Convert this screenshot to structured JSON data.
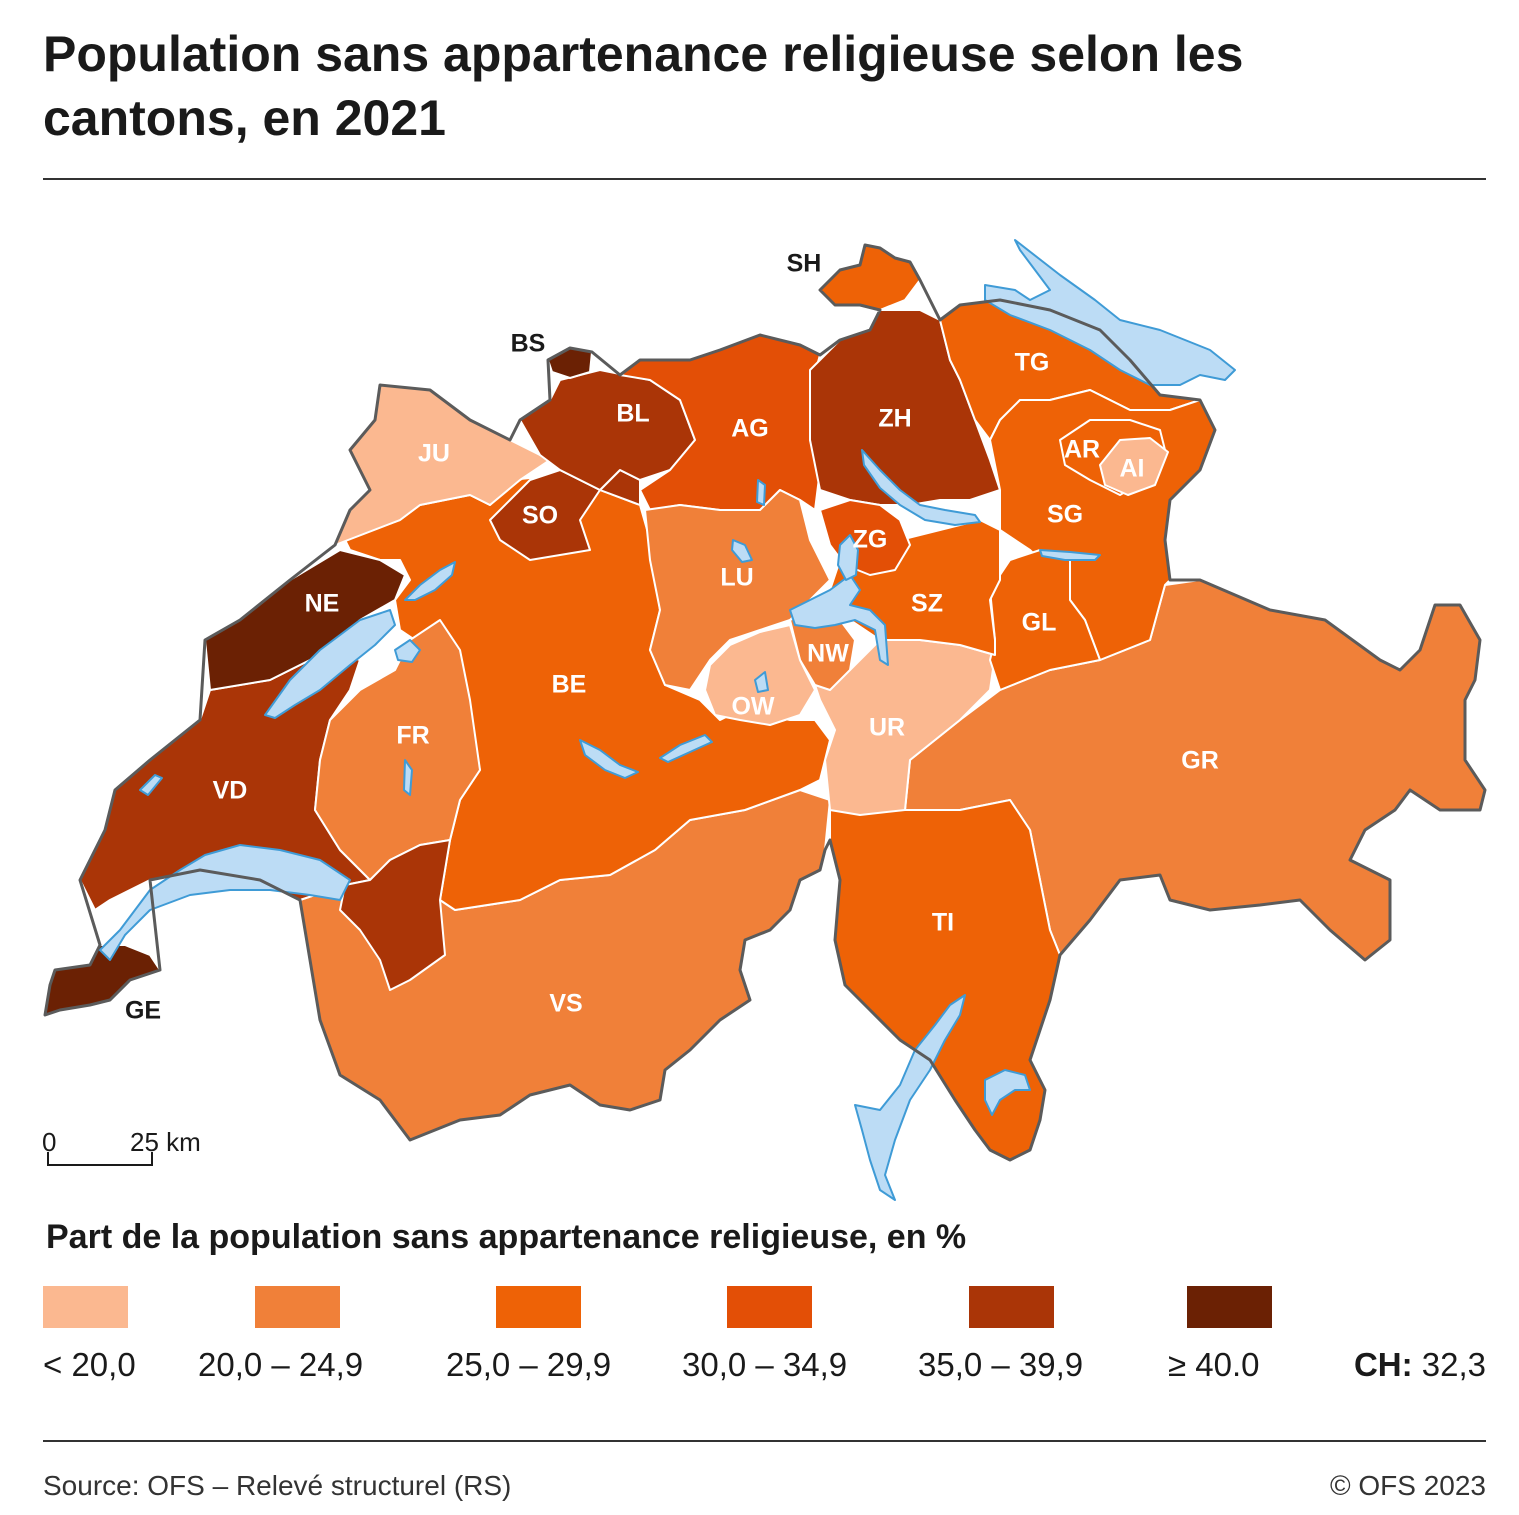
{
  "title": "Population sans appartenance religieuse selon les cantons, en 2021",
  "classes": [
    {
      "label": "< 20,0",
      "color": "#fbb890"
    },
    {
      "label": "20,0 – 24,9",
      "color": "#f08039"
    },
    {
      "label": "25,0 – 29,9",
      "color": "#ee6206"
    },
    {
      "label": "30,0 – 34,9",
      "color": "#e34f06"
    },
    {
      "label": "35,0 – 39,9",
      "color": "#aa3507"
    },
    {
      "label": "≥ 40.0",
      "color": "#6b2104"
    }
  ],
  "cantons": [
    {
      "code": "SH",
      "class": 2
    },
    {
      "code": "BS",
      "class": 5
    },
    {
      "code": "BL",
      "class": 4
    },
    {
      "code": "JU",
      "class": 0
    },
    {
      "code": "SO",
      "class": 4
    },
    {
      "code": "AG",
      "class": 3
    },
    {
      "code": "ZH",
      "class": 4
    },
    {
      "code": "TG",
      "class": 2
    },
    {
      "code": "AR",
      "class": 2
    },
    {
      "code": "AI",
      "class": 0
    },
    {
      "code": "SG",
      "class": 2
    },
    {
      "code": "NE",
      "class": 5
    },
    {
      "code": "LU",
      "class": 1
    },
    {
      "code": "ZG",
      "class": 3
    },
    {
      "code": "SZ",
      "class": 2
    },
    {
      "code": "GL",
      "class": 2
    },
    {
      "code": "BE",
      "class": 2
    },
    {
      "code": "NW",
      "class": 1
    },
    {
      "code": "OW",
      "class": 0
    },
    {
      "code": "UR",
      "class": 0
    },
    {
      "code": "FR",
      "class": 1
    },
    {
      "code": "VD",
      "class": 4
    },
    {
      "code": "GR",
      "class": 1
    },
    {
      "code": "GE",
      "class": 5
    },
    {
      "code": "TI",
      "class": 2
    },
    {
      "code": "VS",
      "class": 1
    }
  ],
  "scale": {
    "start": "0",
    "end": "25 km"
  },
  "legend": {
    "title": "Part de la population sans appartenance religieuse, en %",
    "ch_label": "CH:",
    "ch_value": "32,3"
  },
  "footer": {
    "source": "Source: OFS – Relevé structurel (RS)",
    "copyright": "© OFS 2023"
  },
  "colors": {
    "lake_fill": "#bcdcf5",
    "lake_stroke": "#3f9bd6",
    "outline": "#5b5b5b"
  }
}
